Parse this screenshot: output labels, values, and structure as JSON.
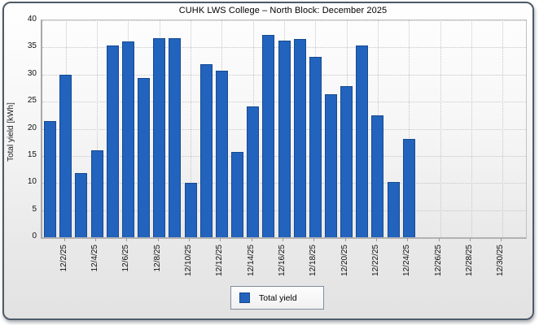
{
  "chart_data": {
    "type": "bar",
    "title": "CUHK LWS College – North Block: December 2025",
    "ylabel": "Total yield [kWh]",
    "ylim": [
      0,
      40
    ],
    "ytick_step": 5,
    "yticks": [
      0,
      5,
      10,
      15,
      20,
      25,
      30,
      35,
      40
    ],
    "categories": [
      "12/1/25",
      "12/2/25",
      "12/3/25",
      "12/4/25",
      "12/5/25",
      "12/6/25",
      "12/7/25",
      "12/8/25",
      "12/9/25",
      "12/10/25",
      "12/11/25",
      "12/12/25",
      "12/13/25",
      "12/14/25",
      "12/15/25",
      "12/16/25",
      "12/17/25",
      "12/18/25",
      "12/19/25",
      "12/20/25",
      "12/21/25",
      "12/22/25",
      "12/23/25",
      "12/24/25",
      "12/25/25",
      "12/26/25",
      "12/27/25",
      "12/28/25",
      "12/29/25",
      "12/30/25",
      "12/31/25"
    ],
    "values": [
      21.5,
      30.0,
      11.9,
      16.0,
      35.4,
      36.1,
      29.3,
      36.7,
      36.7,
      10.1,
      31.9,
      30.7,
      15.8,
      24.1,
      37.3,
      36.2,
      36.6,
      33.3,
      26.3,
      27.9,
      35.4,
      22.4,
      10.2,
      18.2,
      null,
      null,
      null,
      null,
      null,
      null,
      null
    ],
    "xtick_labels": [
      "12/2/25",
      "12/4/25",
      "12/6/25",
      "12/8/25",
      "12/10/25",
      "12/12/25",
      "12/14/25",
      "12/16/25",
      "12/18/25",
      "12/20/25",
      "12/22/25",
      "12/24/25",
      "12/26/25",
      "12/28/25",
      "12/30/25"
    ],
    "grid": true,
    "legend_position": "bottom",
    "legend_entries": [
      "Total yield"
    ],
    "bar_color": "#2263BE",
    "bar_border_color": "#174A8F"
  }
}
